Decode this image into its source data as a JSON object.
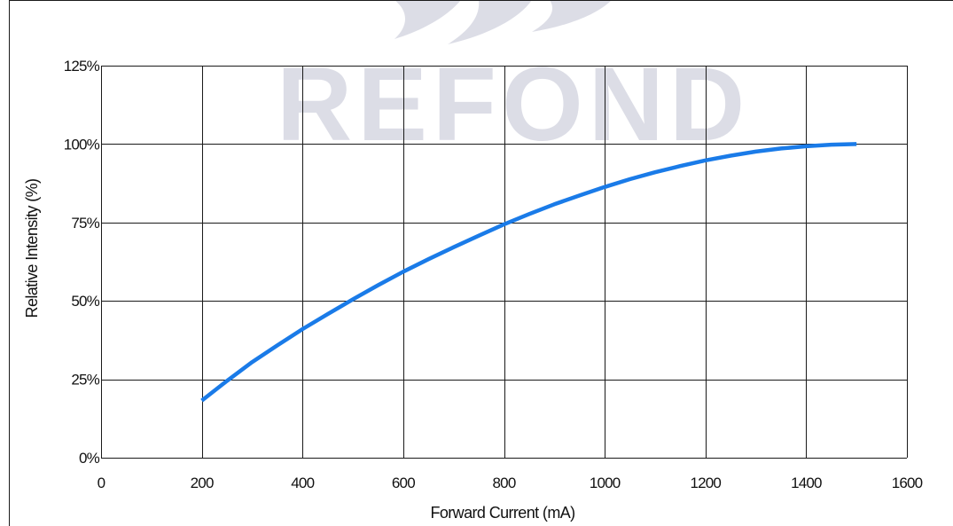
{
  "watermark": {
    "text": "REFOND"
  },
  "chart_data": {
    "type": "line",
    "xlabel": "Forward Current (mA)",
    "ylabel": "Relative Intensity (%)",
    "xlim": [
      0,
      1600
    ],
    "ylim": [
      0,
      125
    ],
    "x_ticks": [
      {
        "value": 0,
        "label": "0"
      },
      {
        "value": 200,
        "label": "200"
      },
      {
        "value": 400,
        "label": "400"
      },
      {
        "value": 600,
        "label": "600"
      },
      {
        "value": 800,
        "label": "800"
      },
      {
        "value": 1000,
        "label": "1000"
      },
      {
        "value": 1200,
        "label": "1200"
      },
      {
        "value": 1400,
        "label": "1400"
      },
      {
        "value": 1600,
        "label": "1600"
      }
    ],
    "y_ticks": [
      {
        "value": 0,
        "label": "0%"
      },
      {
        "value": 25,
        "label": "25%"
      },
      {
        "value": 50,
        "label": "50%"
      },
      {
        "value": 75,
        "label": "75%"
      },
      {
        "value": 100,
        "label": "100%"
      },
      {
        "value": 125,
        "label": "125%"
      }
    ],
    "grid": true,
    "series": [
      {
        "color": "#1a7be8",
        "x": [
          200,
          250,
          300,
          350,
          400,
          450,
          500,
          550,
          600,
          650,
          700,
          750,
          800,
          850,
          900,
          950,
          1000,
          1050,
          1100,
          1150,
          1200,
          1250,
          1300,
          1350,
          1400,
          1450,
          1500
        ],
        "y": [
          18.2,
          24.5,
          30.5,
          35.8,
          41.0,
          45.8,
          50.5,
          55.0,
          59.3,
          63.3,
          67.1,
          70.8,
          74.4,
          77.7,
          80.8,
          83.6,
          86.3,
          88.8,
          91.0,
          93.0,
          94.8,
          96.3,
          97.6,
          98.6,
          99.3,
          99.8,
          100.0
        ]
      }
    ]
  }
}
